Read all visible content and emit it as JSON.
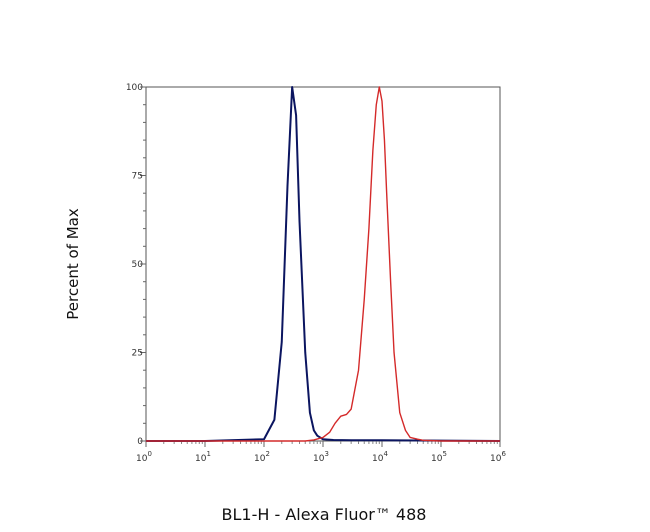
{
  "chart_data": {
    "type": "line",
    "xlabel": "BL1-H - Alexa Fluor™ 488",
    "ylabel": "Percent of Max",
    "x_scale": "log",
    "xlim": [
      1,
      1000000
    ],
    "ylim": [
      0,
      100
    ],
    "x_ticks": [
      {
        "value": 1,
        "base": "10",
        "exp": "0"
      },
      {
        "value": 10,
        "base": "10",
        "exp": "1"
      },
      {
        "value": 100,
        "base": "10",
        "exp": "2"
      },
      {
        "value": 1000,
        "base": "10",
        "exp": "3"
      },
      {
        "value": 10000,
        "base": "10",
        "exp": "4"
      },
      {
        "value": 100000,
        "base": "10",
        "exp": "5"
      },
      {
        "value": 1000000,
        "base": "10",
        "exp": "6"
      }
    ],
    "y_ticks": [
      "0",
      "25",
      "50",
      "75",
      "100"
    ],
    "grid": false,
    "legend": "none",
    "series": [
      {
        "color": "#0b1560",
        "x": [
          1,
          10,
          100,
          150,
          200,
          250,
          300,
          350,
          400,
          500,
          600,
          700,
          800,
          1000,
          1500,
          3000,
          10000,
          100000,
          1000000
        ],
        "y": [
          0,
          0,
          0.5,
          6,
          28,
          72,
          100,
          92,
          62,
          25,
          8,
          3,
          1.5,
          0.5,
          0.3,
          0.2,
          0.2,
          0.1,
          0
        ]
      },
      {
        "color": "#d42a2a",
        "x": [
          1,
          10,
          100,
          500,
          700,
          1000,
          1300,
          1600,
          2000,
          2500,
          3000,
          4000,
          5000,
          6000,
          7000,
          8000,
          9000,
          10000,
          11000,
          12000,
          14000,
          16000,
          20000,
          25000,
          30000,
          40000,
          50000,
          100000,
          1000000
        ],
        "y": [
          0,
          0,
          0,
          0,
          0.3,
          1,
          2.5,
          5,
          7,
          7.5,
          9,
          20,
          40,
          60,
          82,
          95,
          100,
          96,
          85,
          70,
          45,
          25,
          8,
          3,
          1,
          0.5,
          0.2,
          0,
          0
        ]
      }
    ]
  }
}
